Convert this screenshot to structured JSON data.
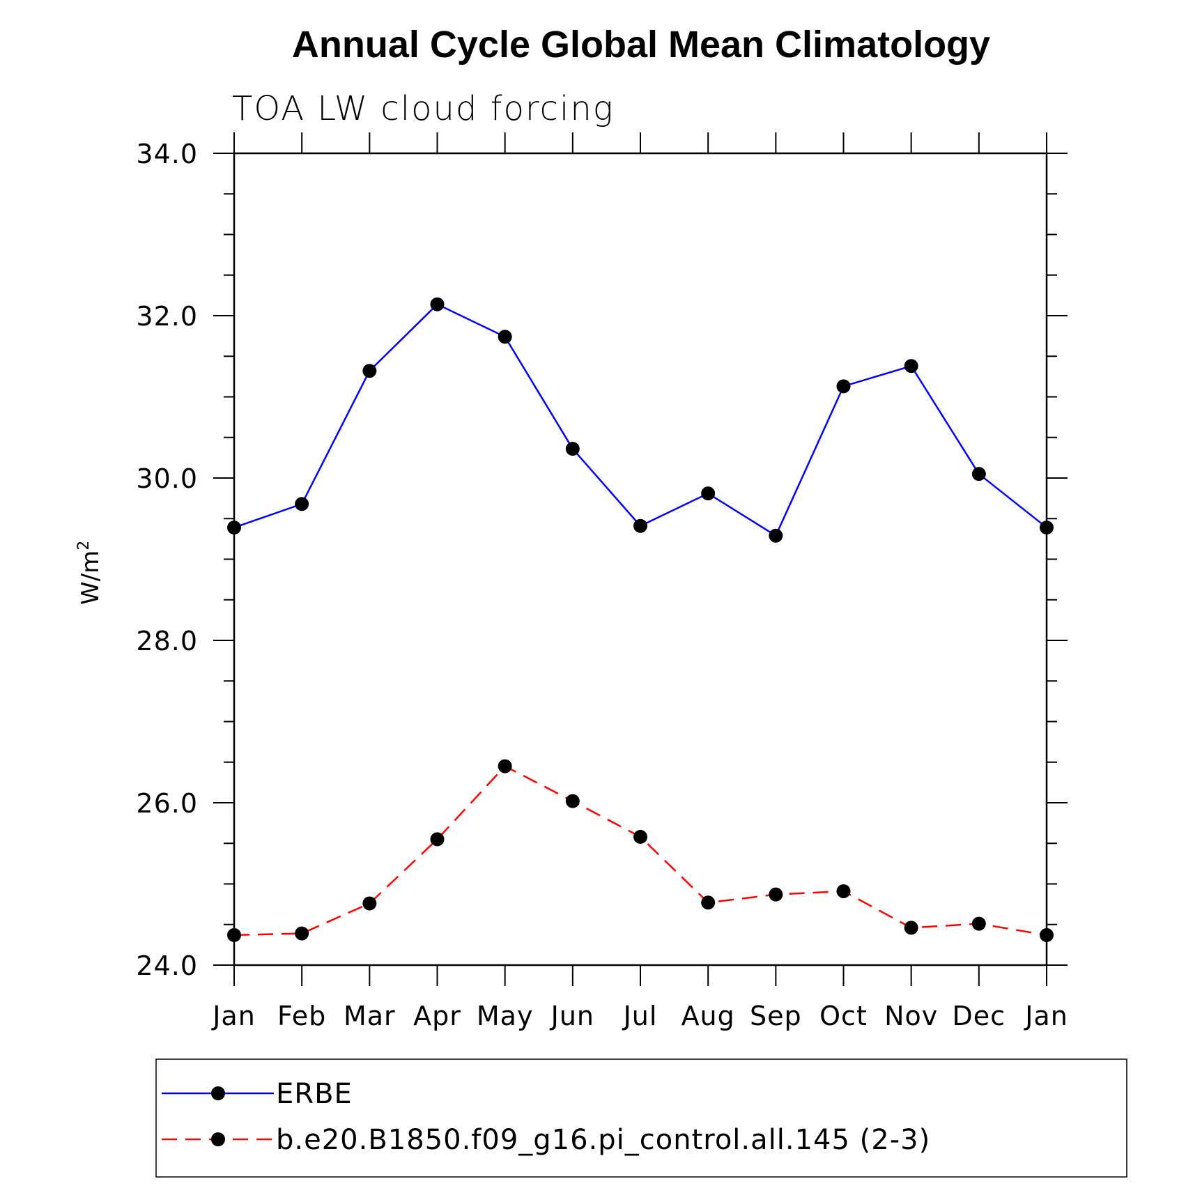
{
  "chart_data": {
    "type": "line",
    "title": "Annual Cycle Global Mean Climatology",
    "subtitle": "TOA LW cloud forcing",
    "ylabel": "W/m",
    "ylabel_sup": "2",
    "xlabel": "",
    "ylim": [
      24.0,
      34.0
    ],
    "yticks": [
      "24.0",
      "26.0",
      "28.0",
      "30.0",
      "32.0",
      "34.0"
    ],
    "y_minor_step": 0.5,
    "categories": [
      "Jan",
      "Feb",
      "Mar",
      "Apr",
      "May",
      "Jun",
      "Jul",
      "Aug",
      "Sep",
      "Oct",
      "Nov",
      "Dec",
      "Jan"
    ],
    "grid": false,
    "legend_position": "bottom",
    "series": [
      {
        "name": "ERBE",
        "color": "#0000ff",
        "dash": "solid",
        "marker": "filled-circle",
        "values": [
          29.39,
          29.68,
          31.32,
          32.14,
          31.74,
          30.36,
          29.41,
          29.81,
          29.29,
          31.13,
          31.38,
          30.05,
          29.39
        ]
      },
      {
        "name": "b.e20.B1850.f09_g16.pi_control.all.145 (2-3)",
        "color": "#ff0000",
        "dash": "dashed",
        "marker": "filled-circle",
        "values": [
          24.37,
          24.39,
          24.76,
          25.55,
          26.45,
          26.02,
          25.58,
          24.77,
          24.87,
          24.91,
          24.46,
          24.51,
          24.37
        ]
      }
    ]
  }
}
